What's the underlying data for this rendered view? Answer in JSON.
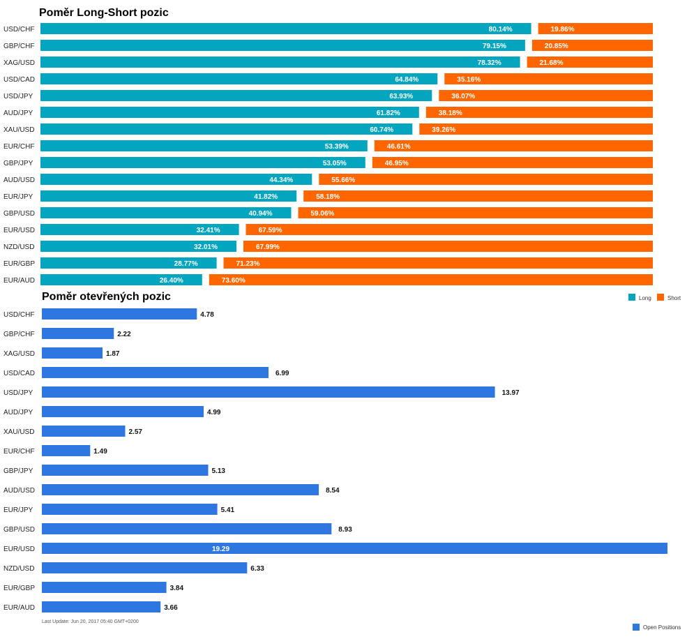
{
  "colors": {
    "long": "#04a5be",
    "short": "#ff6600",
    "open": "#2f77e0"
  },
  "chart_data": [
    {
      "type": "bar",
      "orientation": "horizontal",
      "stacked": true,
      "percent": true,
      "title": "Poměr Long-Short pozic",
      "categories": [
        "USD/CHF",
        "GBP/CHF",
        "XAG/USD",
        "USD/CAD",
        "USD/JPY",
        "AUD/JPY",
        "XAU/USD",
        "EUR/CHF",
        "GBP/JPY",
        "AUD/USD",
        "EUR/JPY",
        "GBP/USD",
        "EUR/USD",
        "NZD/USD",
        "EUR/GBP",
        "EUR/AUD"
      ],
      "series": [
        {
          "name": "Long",
          "values": [
            80.14,
            79.15,
            78.32,
            64.84,
            63.93,
            61.82,
            60.74,
            53.39,
            53.05,
            44.34,
            41.82,
            40.94,
            32.41,
            32.01,
            28.77,
            26.4
          ]
        },
        {
          "name": "Short",
          "values": [
            19.86,
            20.85,
            21.68,
            35.16,
            36.07,
            38.18,
            39.26,
            46.61,
            46.95,
            55.66,
            58.18,
            59.06,
            67.59,
            67.99,
            71.23,
            73.6
          ]
        }
      ],
      "value_labels": {
        "long": [
          "80.14%",
          "79.15%",
          "78.32%",
          "64.84%",
          "63.93%",
          "61.82%",
          "60.74%",
          "53.39%",
          "53.05%",
          "44.34%",
          "41.82%",
          "40.94%",
          "32.41%",
          "32.01%",
          "28.77%",
          "26.40%"
        ],
        "short": [
          "19.86%",
          "20.85%",
          "21.68%",
          "35.16%",
          "36.07%",
          "38.18%",
          "39.26%",
          "46.61%",
          "46.95%",
          "55.66%",
          "58.18%",
          "59.06%",
          "67.59%",
          "67.99%",
          "71.23%",
          "73.60%"
        ]
      },
      "xlim": [
        0,
        100
      ],
      "grid": false,
      "legend": "top-right",
      "legend_labels": [
        "Long",
        "Short"
      ]
    },
    {
      "type": "bar",
      "orientation": "horizontal",
      "title": "Poměr otevřených pozic",
      "categories": [
        "USD/CHF",
        "GBP/CHF",
        "XAG/USD",
        "USD/CAD",
        "USD/JPY",
        "AUD/JPY",
        "XAU/USD",
        "EUR/CHF",
        "GBP/JPY",
        "AUD/USD",
        "EUR/JPY",
        "GBP/USD",
        "EUR/USD",
        "NZD/USD",
        "EUR/GBP",
        "EUR/AUD"
      ],
      "series": [
        {
          "name": "Open Positions",
          "values": [
            4.78,
            2.22,
            1.87,
            6.99,
            13.97,
            4.99,
            2.57,
            1.49,
            5.13,
            8.54,
            5.41,
            8.93,
            19.29,
            6.33,
            3.84,
            3.66
          ]
        }
      ],
      "value_labels": [
        "4.78",
        "2.22",
        "1.87",
        "6.99",
        "13.97",
        "4.99",
        "2.57",
        "1.49",
        "5.13",
        "8.54",
        "5.41",
        "8.93",
        "19.29",
        "6.33",
        "3.84",
        "3.66"
      ],
      "grid": false,
      "legend": "bottom-right",
      "legend_labels": [
        "Open Positions"
      ]
    }
  ],
  "footer": {
    "last_update": "Last Update: Jun 20, 2017 05:40 GMT+0200"
  }
}
